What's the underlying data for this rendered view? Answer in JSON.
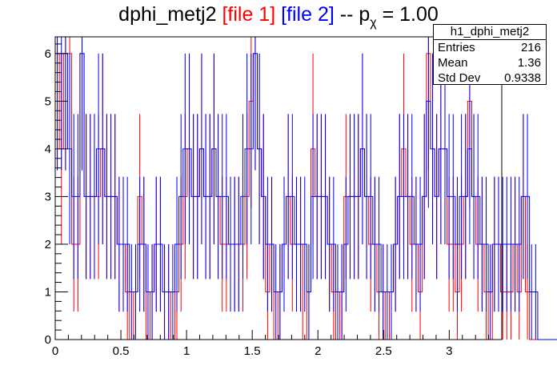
{
  "title": {
    "base": "dphi_metj2",
    "file1": "[file 1]",
    "file2": "[file 2]",
    "suffix_pre": "-- p",
    "subscript": "χ",
    "suffix_post": "= 1.00"
  },
  "stats": {
    "name": "h1_dphi_metj2",
    "entries_label": "Entries",
    "entries": "216",
    "mean_label": "Mean",
    "mean": "1.36",
    "stddev_label": "Std Dev",
    "stddev": "0.9338"
  },
  "colors": {
    "file1": "#ff0000",
    "file2": "#0000ff",
    "axis": "#000000"
  },
  "chart_data": {
    "type": "histogram",
    "xlim": [
      0,
      3.4
    ],
    "ylim": [
      0,
      6.35
    ],
    "xticks": [
      0,
      0.5,
      1,
      1.5,
      2,
      2.5,
      3
    ],
    "xtick_labels": [
      "0",
      "0.5",
      "1",
      "1.5",
      "2",
      "2.5",
      "3"
    ],
    "yticks": [
      0,
      1,
      2,
      3,
      4,
      5,
      6
    ],
    "ytick_labels": [
      "0",
      "1",
      "2",
      "3",
      "4",
      "5",
      "6"
    ],
    "bin_width": 0.0314,
    "x_start": 0.0,
    "series": [
      {
        "values": [
          6,
          4,
          6,
          6,
          2,
          2,
          6,
          3,
          3,
          3,
          3,
          4,
          3,
          3,
          3,
          2,
          2,
          1,
          0,
          1,
          3,
          2,
          0,
          1,
          2,
          2,
          1,
          1,
          0,
          1,
          2,
          3,
          4,
          3,
          3,
          4,
          3,
          3,
          4,
          3,
          2,
          2,
          2,
          2,
          2,
          2,
          3,
          5,
          6,
          4,
          3,
          1,
          2,
          0,
          1,
          2,
          3,
          2,
          2,
          2,
          0,
          1,
          4,
          3,
          3,
          3,
          2,
          1,
          0,
          1,
          3,
          3,
          3,
          3,
          4,
          3,
          2,
          2,
          1,
          1,
          0,
          1,
          2,
          3,
          4,
          3,
          2,
          2,
          1,
          3,
          6,
          4,
          3,
          4,
          4,
          2,
          2,
          1,
          2,
          3,
          5,
          3,
          2,
          2,
          1,
          0,
          2,
          2,
          1,
          1,
          1,
          2,
          1,
          3,
          1,
          0,
          0,
          0,
          0,
          0,
          0,
          0,
          0,
          0,
          0
        ]
      },
      {
        "values": [
          6,
          6,
          6,
          4,
          3,
          3,
          6,
          3,
          3,
          3,
          4,
          4,
          3,
          3,
          3,
          2,
          2,
          2,
          1,
          1,
          2,
          2,
          1,
          1,
          2,
          2,
          1,
          1,
          1,
          2,
          3,
          4,
          4,
          3,
          3,
          4,
          3,
          3,
          4,
          3,
          3,
          3,
          2,
          2,
          2,
          3,
          4,
          4,
          6,
          4,
          3,
          2,
          2,
          1,
          1,
          2,
          3,
          3,
          2,
          2,
          2,
          1,
          3,
          3,
          3,
          3,
          2,
          2,
          1,
          1,
          2,
          3,
          3,
          3,
          4,
          3,
          3,
          2,
          2,
          1,
          1,
          1,
          2,
          3,
          3,
          3,
          3,
          2,
          2,
          3,
          5,
          4,
          3,
          4,
          4,
          3,
          3,
          2,
          3,
          3,
          4,
          3,
          3,
          2,
          2,
          1,
          2,
          2,
          2,
          2,
          2,
          2,
          2,
          3,
          3,
          1,
          1,
          0,
          0,
          0,
          0,
          0,
          0,
          0,
          0
        ]
      }
    ]
  }
}
